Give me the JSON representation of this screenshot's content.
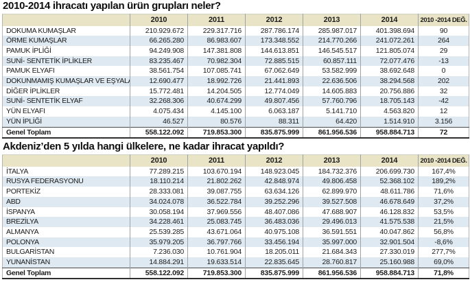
{
  "colors": {
    "header_bg": "#e9e4c5",
    "row_bg": "#ffffff",
    "row_alt_bg": "#dfe9f1",
    "text": "#1b1b1b",
    "grid_line": "#9aa1a9",
    "bottom_border": "#2e2e2e"
  },
  "chart_data": [
    {
      "type": "table",
      "title": "2010-2014 ihracatı yapılan ürün grupları neler?",
      "columns": [
        "",
        "2010",
        "2011",
        "2012",
        "2013",
        "2014",
        "2010 -2014 DEĞ."
      ],
      "rows": [
        [
          "DOKUMA KUMAŞLAR",
          "210.929.672",
          "229.317.716",
          "287.786.174",
          "285.987.017",
          "401.398.694",
          "90"
        ],
        [
          "ÖRME KUMAŞLAR",
          "66.265.280",
          "86.983.607",
          "173.348.552",
          "214.770.266",
          "241.072.261",
          "264"
        ],
        [
          "PAMUK İPLİĞİ",
          "94.249.908",
          "147.381.808",
          "144.613.851",
          "146.545.517",
          "121.805.074",
          "29"
        ],
        [
          "SUNİ- SENTETİK İPLİKLER",
          "83.235.467",
          "70.982.304",
          "72.885.515",
          "60.857.111",
          "72.077.476",
          "-13"
        ],
        [
          "PAMUK ELYAFI",
          "38.561.754",
          "107.085.741",
          "67.062.649",
          "53.582.999",
          "38.692.648",
          "0"
        ],
        [
          "DOKUNMAMIŞ KUMAŞLAR VE EŞYALAR",
          "12.690.477",
          "18.992.726",
          "21.441.893",
          "22.636.506",
          "38.294.568",
          "202"
        ],
        [
          "DİĞER İPLİKLER",
          "15.772.481",
          "14.204.505",
          "12.774.049",
          "14.605.883",
          "20.756.886",
          "32"
        ],
        [
          "SUNİ- SENTETİK ELYAF",
          "32.268.306",
          "40.674.299",
          "49.807.456",
          "57.760.796",
          "18.705.143",
          "-42"
        ],
        [
          "YÜN ELYAFI",
          "4.075.434",
          "4.145.100",
          "6.063.187",
          "5.141.710",
          "4.563.820",
          "12"
        ],
        [
          "YÜN İPLİĞİ",
          "46.527",
          "80.576",
          "88.311",
          "64.420",
          "1.514.910",
          "3.156"
        ]
      ],
      "total_row": [
        "Genel Toplam",
        "558.122.092",
        "719.853.300",
        "835.875.999",
        "861.956.536",
        "958.884.713",
        "72"
      ]
    },
    {
      "type": "table",
      "title": "Akdeniz’den 5 yılda hangi ülkelere, ne kadar ihracat yapıldı?",
      "columns": [
        "",
        "2010",
        "2011",
        "2012",
        "2013",
        "2014",
        "2010 -2014 DEĞ."
      ],
      "rows": [
        [
          "İTALYA",
          "77.289.215",
          "103.670.194",
          "148.923.045",
          "184.732.376",
          "206.699.730",
          "167,4%"
        ],
        [
          "RUSYA FEDERASYONU",
          "18.110.214",
          "21.802.262",
          "42.848.974",
          "49.806.458",
          "52.368.102",
          "189,2%"
        ],
        [
          "PORTEKİZ",
          "28.333.081",
          "39.087.755",
          "63.634.126",
          "62.899.970",
          "48.611.786",
          "71,6%"
        ],
        [
          "ABD",
          "34.024.078",
          "36.522.784",
          "39.252.296",
          "39.527.508",
          "46.678.649",
          "37,2%"
        ],
        [
          "İSPANYA",
          "30.058.194",
          "37.969.556",
          "48.407.086",
          "47.688.907",
          "46.128.832",
          "53,5%"
        ],
        [
          "BREZİLYA",
          "34.228.461",
          "25.083.745",
          "36.483.036",
          "29.496.013",
          "41.575.538",
          "21,5%"
        ],
        [
          "ALMANYA",
          "25.539.285",
          "43.671.064",
          "40.975.108",
          "36.591.551",
          "40.047.862",
          "56,8%"
        ],
        [
          "POLONYA",
          "35.979.205",
          "36.797.766",
          "33.456.194",
          "35.997.000",
          "32.901.504",
          "-8,6%"
        ],
        [
          "BULGARİSTAN",
          "7.236.030",
          "10.761.904",
          "18.205.011",
          "21.684.343",
          "27.330.019",
          "277,7%"
        ],
        [
          "YUNANİSTAN",
          "14.884.291",
          "19.633.514",
          "22.835.645",
          "28.760.817",
          "25.160.988",
          "69,0%"
        ]
      ],
      "total_row": [
        "Genel Toplam",
        "558.122.092",
        "719.853.300",
        "835.875.999",
        "861.956.536",
        "958.884.713",
        "71,8%"
      ]
    }
  ]
}
